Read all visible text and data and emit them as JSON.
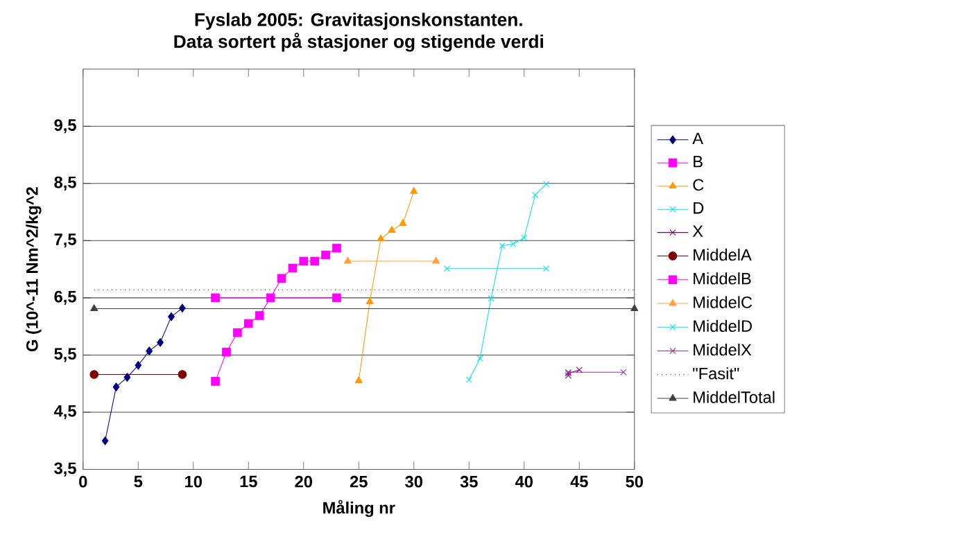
{
  "chart_data": {
    "type": "line",
    "title": "Fyslab 2005: Gravitasjonskonstanten.",
    "subtitle": "Data sortert på stasjoner og stigende verdi",
    "xlabel": "Måling nr",
    "ylabel": "G (10^-11 Nm^2/kg^2",
    "xlim": [
      0,
      50
    ],
    "ylim": [
      3.5,
      10.5
    ],
    "xticks": [
      0,
      5,
      10,
      15,
      20,
      25,
      30,
      35,
      40,
      45,
      50
    ],
    "yticks": [
      {
        "value": 3.5,
        "label": "3,5"
      },
      {
        "value": 4.5,
        "label": "4,5"
      },
      {
        "value": 5.5,
        "label": "5,5"
      },
      {
        "value": 6.5,
        "label": "6,5"
      },
      {
        "value": 7.5,
        "label": "7,5"
      },
      {
        "value": 8.5,
        "label": "8,5"
      },
      {
        "value": 9.5,
        "label": "9,5"
      }
    ],
    "grid": "y",
    "legend": "right",
    "series": [
      {
        "name": "A",
        "color": "#000080",
        "marker": "diamond",
        "x": [
          2,
          3,
          4,
          5,
          6,
          7,
          8,
          9
        ],
        "values": [
          4.0,
          4.94,
          5.11,
          5.32,
          5.57,
          5.72,
          6.17,
          6.32
        ]
      },
      {
        "name": "B",
        "color": "#ff00ff",
        "marker": "square",
        "x": [
          12,
          13,
          14,
          15,
          16,
          17,
          18,
          19,
          20,
          21,
          22,
          23
        ],
        "values": [
          5.04,
          5.55,
          5.89,
          6.05,
          6.19,
          6.5,
          6.84,
          7.02,
          7.14,
          7.14,
          7.25,
          7.37
        ]
      },
      {
        "name": "C",
        "color": "#ff9900",
        "marker": "triangle",
        "x": [
          25,
          26,
          27,
          28,
          29,
          30
        ],
        "values": [
          5.05,
          6.43,
          7.53,
          7.68,
          7.8,
          8.36
        ]
      },
      {
        "name": "D",
        "color": "#00e5ee",
        "marker": "cross",
        "x": [
          35,
          36,
          37,
          38,
          39,
          40,
          41,
          42
        ],
        "values": [
          5.07,
          5.44,
          6.49,
          7.41,
          7.44,
          7.55,
          8.3,
          8.49
        ]
      },
      {
        "name": "X",
        "color": "#800080",
        "marker": "cross",
        "x": [
          44,
          44,
          45
        ],
        "values": [
          5.14,
          5.18,
          5.24
        ]
      },
      {
        "name": "MiddelA",
        "color": "#800000",
        "marker": "circle",
        "x": [
          1,
          9
        ],
        "values": [
          5.16,
          5.16
        ]
      },
      {
        "name": "MiddelB",
        "color": "#ff00ff",
        "marker": "square",
        "x": [
          12,
          23
        ],
        "values": [
          6.5,
          6.5
        ]
      },
      {
        "name": "MiddelC",
        "color": "#ffa040",
        "marker": "triangle",
        "x": [
          24,
          32
        ],
        "values": [
          7.14,
          7.14
        ]
      },
      {
        "name": "MiddelD",
        "color": "#00e5ee",
        "marker": "cross",
        "x": [
          33,
          42
        ],
        "values": [
          7.01,
          7.01
        ]
      },
      {
        "name": "MiddelX",
        "color": "#993399",
        "marker": "cross",
        "x": [
          44,
          49
        ],
        "values": [
          5.2,
          5.2
        ]
      },
      {
        "name": "\"Fasit\"",
        "color": "#000000",
        "marker": "none",
        "line_style": "dotted",
        "x": [
          1,
          50
        ],
        "values": [
          6.64,
          6.64
        ]
      },
      {
        "name": "MiddelTotal",
        "color": "#404040",
        "marker": "triangle",
        "x": [
          1,
          50
        ],
        "values": [
          6.31,
          6.31
        ]
      }
    ]
  }
}
